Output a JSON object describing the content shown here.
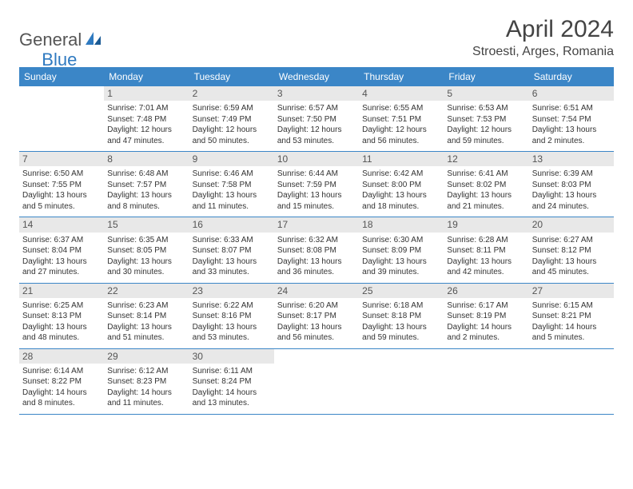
{
  "logo": {
    "part1": "General",
    "part2": "Blue"
  },
  "title": "April 2024",
  "location": "Stroesti, Arges, Romania",
  "colors": {
    "header_bg": "#3b86c7",
    "daynum_bg": "#e8e8e8",
    "text": "#333333",
    "logo_gray": "#555555",
    "logo_blue": "#2f7ac0"
  },
  "weekdays": [
    "Sunday",
    "Monday",
    "Tuesday",
    "Wednesday",
    "Thursday",
    "Friday",
    "Saturday"
  ],
  "weeks": [
    [
      {
        "empty": true
      },
      {
        "num": "1",
        "sunrise": "Sunrise: 7:01 AM",
        "sunset": "Sunset: 7:48 PM",
        "daylight": "Daylight: 12 hours and 47 minutes."
      },
      {
        "num": "2",
        "sunrise": "Sunrise: 6:59 AM",
        "sunset": "Sunset: 7:49 PM",
        "daylight": "Daylight: 12 hours and 50 minutes."
      },
      {
        "num": "3",
        "sunrise": "Sunrise: 6:57 AM",
        "sunset": "Sunset: 7:50 PM",
        "daylight": "Daylight: 12 hours and 53 minutes."
      },
      {
        "num": "4",
        "sunrise": "Sunrise: 6:55 AM",
        "sunset": "Sunset: 7:51 PM",
        "daylight": "Daylight: 12 hours and 56 minutes."
      },
      {
        "num": "5",
        "sunrise": "Sunrise: 6:53 AM",
        "sunset": "Sunset: 7:53 PM",
        "daylight": "Daylight: 12 hours and 59 minutes."
      },
      {
        "num": "6",
        "sunrise": "Sunrise: 6:51 AM",
        "sunset": "Sunset: 7:54 PM",
        "daylight": "Daylight: 13 hours and 2 minutes."
      }
    ],
    [
      {
        "num": "7",
        "sunrise": "Sunrise: 6:50 AM",
        "sunset": "Sunset: 7:55 PM",
        "daylight": "Daylight: 13 hours and 5 minutes."
      },
      {
        "num": "8",
        "sunrise": "Sunrise: 6:48 AM",
        "sunset": "Sunset: 7:57 PM",
        "daylight": "Daylight: 13 hours and 8 minutes."
      },
      {
        "num": "9",
        "sunrise": "Sunrise: 6:46 AM",
        "sunset": "Sunset: 7:58 PM",
        "daylight": "Daylight: 13 hours and 11 minutes."
      },
      {
        "num": "10",
        "sunrise": "Sunrise: 6:44 AM",
        "sunset": "Sunset: 7:59 PM",
        "daylight": "Daylight: 13 hours and 15 minutes."
      },
      {
        "num": "11",
        "sunrise": "Sunrise: 6:42 AM",
        "sunset": "Sunset: 8:00 PM",
        "daylight": "Daylight: 13 hours and 18 minutes."
      },
      {
        "num": "12",
        "sunrise": "Sunrise: 6:41 AM",
        "sunset": "Sunset: 8:02 PM",
        "daylight": "Daylight: 13 hours and 21 minutes."
      },
      {
        "num": "13",
        "sunrise": "Sunrise: 6:39 AM",
        "sunset": "Sunset: 8:03 PM",
        "daylight": "Daylight: 13 hours and 24 minutes."
      }
    ],
    [
      {
        "num": "14",
        "sunrise": "Sunrise: 6:37 AM",
        "sunset": "Sunset: 8:04 PM",
        "daylight": "Daylight: 13 hours and 27 minutes."
      },
      {
        "num": "15",
        "sunrise": "Sunrise: 6:35 AM",
        "sunset": "Sunset: 8:05 PM",
        "daylight": "Daylight: 13 hours and 30 minutes."
      },
      {
        "num": "16",
        "sunrise": "Sunrise: 6:33 AM",
        "sunset": "Sunset: 8:07 PM",
        "daylight": "Daylight: 13 hours and 33 minutes."
      },
      {
        "num": "17",
        "sunrise": "Sunrise: 6:32 AM",
        "sunset": "Sunset: 8:08 PM",
        "daylight": "Daylight: 13 hours and 36 minutes."
      },
      {
        "num": "18",
        "sunrise": "Sunrise: 6:30 AM",
        "sunset": "Sunset: 8:09 PM",
        "daylight": "Daylight: 13 hours and 39 minutes."
      },
      {
        "num": "19",
        "sunrise": "Sunrise: 6:28 AM",
        "sunset": "Sunset: 8:11 PM",
        "daylight": "Daylight: 13 hours and 42 minutes."
      },
      {
        "num": "20",
        "sunrise": "Sunrise: 6:27 AM",
        "sunset": "Sunset: 8:12 PM",
        "daylight": "Daylight: 13 hours and 45 minutes."
      }
    ],
    [
      {
        "num": "21",
        "sunrise": "Sunrise: 6:25 AM",
        "sunset": "Sunset: 8:13 PM",
        "daylight": "Daylight: 13 hours and 48 minutes."
      },
      {
        "num": "22",
        "sunrise": "Sunrise: 6:23 AM",
        "sunset": "Sunset: 8:14 PM",
        "daylight": "Daylight: 13 hours and 51 minutes."
      },
      {
        "num": "23",
        "sunrise": "Sunrise: 6:22 AM",
        "sunset": "Sunset: 8:16 PM",
        "daylight": "Daylight: 13 hours and 53 minutes."
      },
      {
        "num": "24",
        "sunrise": "Sunrise: 6:20 AM",
        "sunset": "Sunset: 8:17 PM",
        "daylight": "Daylight: 13 hours and 56 minutes."
      },
      {
        "num": "25",
        "sunrise": "Sunrise: 6:18 AM",
        "sunset": "Sunset: 8:18 PM",
        "daylight": "Daylight: 13 hours and 59 minutes."
      },
      {
        "num": "26",
        "sunrise": "Sunrise: 6:17 AM",
        "sunset": "Sunset: 8:19 PM",
        "daylight": "Daylight: 14 hours and 2 minutes."
      },
      {
        "num": "27",
        "sunrise": "Sunrise: 6:15 AM",
        "sunset": "Sunset: 8:21 PM",
        "daylight": "Daylight: 14 hours and 5 minutes."
      }
    ],
    [
      {
        "num": "28",
        "sunrise": "Sunrise: 6:14 AM",
        "sunset": "Sunset: 8:22 PM",
        "daylight": "Daylight: 14 hours and 8 minutes."
      },
      {
        "num": "29",
        "sunrise": "Sunrise: 6:12 AM",
        "sunset": "Sunset: 8:23 PM",
        "daylight": "Daylight: 14 hours and 11 minutes."
      },
      {
        "num": "30",
        "sunrise": "Sunrise: 6:11 AM",
        "sunset": "Sunset: 8:24 PM",
        "daylight": "Daylight: 14 hours and 13 minutes."
      },
      {
        "empty": true
      },
      {
        "empty": true
      },
      {
        "empty": true
      },
      {
        "empty": true
      }
    ]
  ]
}
